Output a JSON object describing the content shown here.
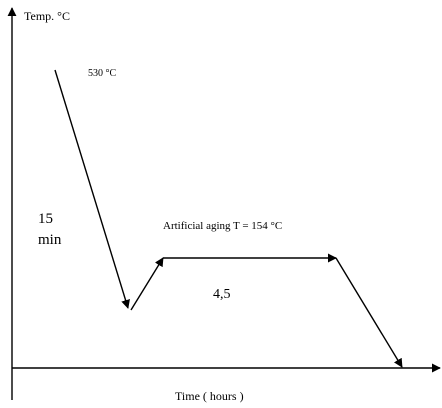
{
  "axes": {
    "y_label": "Temp. °C",
    "x_label": "Time ( hours )"
  },
  "annotations": {
    "solution_temp": "530 °C",
    "quench_time": "15",
    "quench_unit": "min",
    "aging": "Artificial aging T = 154 °C",
    "aging_time": "4,5"
  }
}
